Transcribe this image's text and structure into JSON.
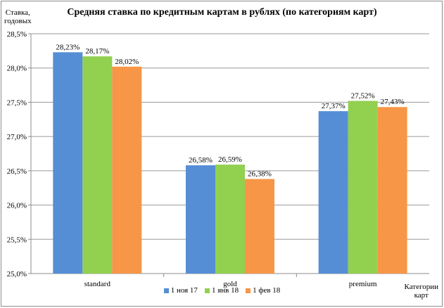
{
  "chart_data": {
    "type": "bar",
    "title": "Средняя ставка по кредитным картам в рублях (по категориям карт)",
    "ylabel_line1": "Ставка,",
    "ylabel_line2": "годовых",
    "xlabel_line1": "Категории",
    "xlabel_line2": "карт",
    "categories": [
      "standard",
      "gold",
      "premium"
    ],
    "series": [
      {
        "name": "1 ноя 17",
        "color": "#558ED5",
        "values": [
          28.23,
          26.58,
          27.37
        ]
      },
      {
        "name": "1 янв 18",
        "color": "#92D050",
        "values": [
          28.17,
          26.59,
          27.52
        ]
      },
      {
        "name": "1 фев 18",
        "color": "#F79646",
        "values": [
          28.02,
          26.38,
          27.43
        ]
      }
    ],
    "ylim": [
      25.0,
      28.5
    ],
    "yticks": [
      "25,0%",
      "25,5%",
      "26,0%",
      "26,5%",
      "27,0%",
      "27,5%",
      "28,0%",
      "28,5%"
    ],
    "data_labels": [
      [
        "28,23%",
        "26,58%",
        "27,37%"
      ],
      [
        "28,17%",
        "26,59%",
        "27,52%"
      ],
      [
        "28,02%",
        "26,38%",
        "27,43%"
      ]
    ],
    "grid": true,
    "legend_position": "bottom"
  }
}
